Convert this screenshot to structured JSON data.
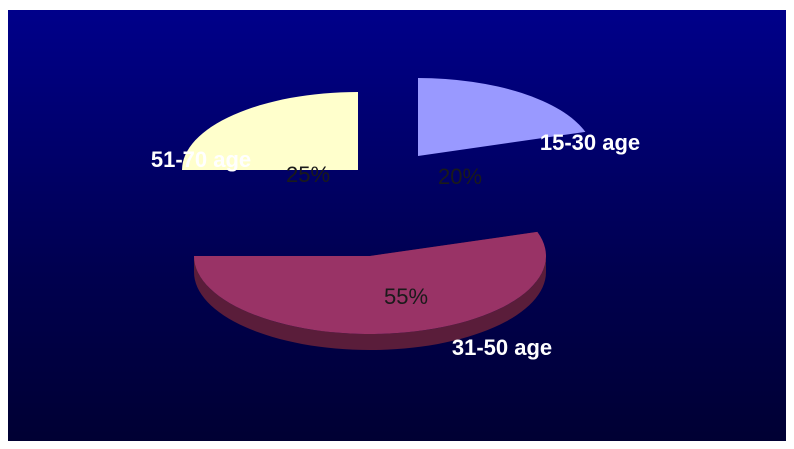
{
  "chart_data": {
    "type": "pie",
    "categories": [
      "15-30 age",
      "31-50 age",
      "51-70 age"
    ],
    "values": [
      20,
      55,
      25
    ],
    "data_labels": [
      "20%",
      "55%",
      "25%"
    ],
    "colors": [
      "#9999ff",
      "#993366",
      "#ffffcc"
    ],
    "side_colors": [
      "#4d4d88",
      "#5a1d3a",
      "#6a6a55"
    ],
    "exploded": true,
    "three_d": true,
    "legend": "none"
  }
}
